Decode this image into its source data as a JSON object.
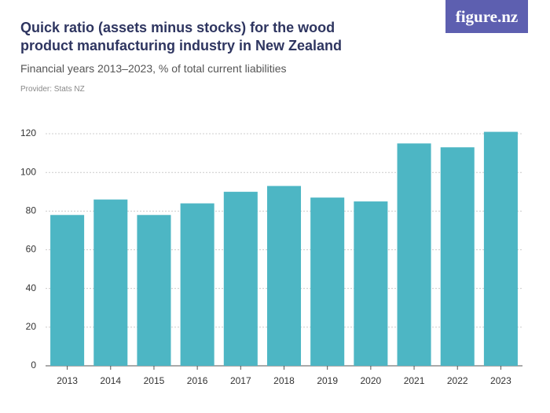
{
  "brand": "figure.nz",
  "provider": "Provider: Stats NZ",
  "chart_data": {
    "type": "bar",
    "title": "Quick ratio (assets minus stocks) for the wood product manufacturing industry in New Zealand",
    "subtitle": "Financial years 2013–2023, % of total current liabilities",
    "categories": [
      "2013",
      "2014",
      "2015",
      "2016",
      "2017",
      "2018",
      "2019",
      "2020",
      "2021",
      "2022",
      "2023"
    ],
    "values": [
      78,
      86,
      78,
      84,
      90,
      93,
      87,
      85,
      115,
      113,
      121
    ],
    "color": "#4db6c4",
    "ylim": [
      0,
      125
    ],
    "yticks": [
      0,
      20,
      40,
      60,
      80,
      100,
      120
    ],
    "grid": true
  }
}
